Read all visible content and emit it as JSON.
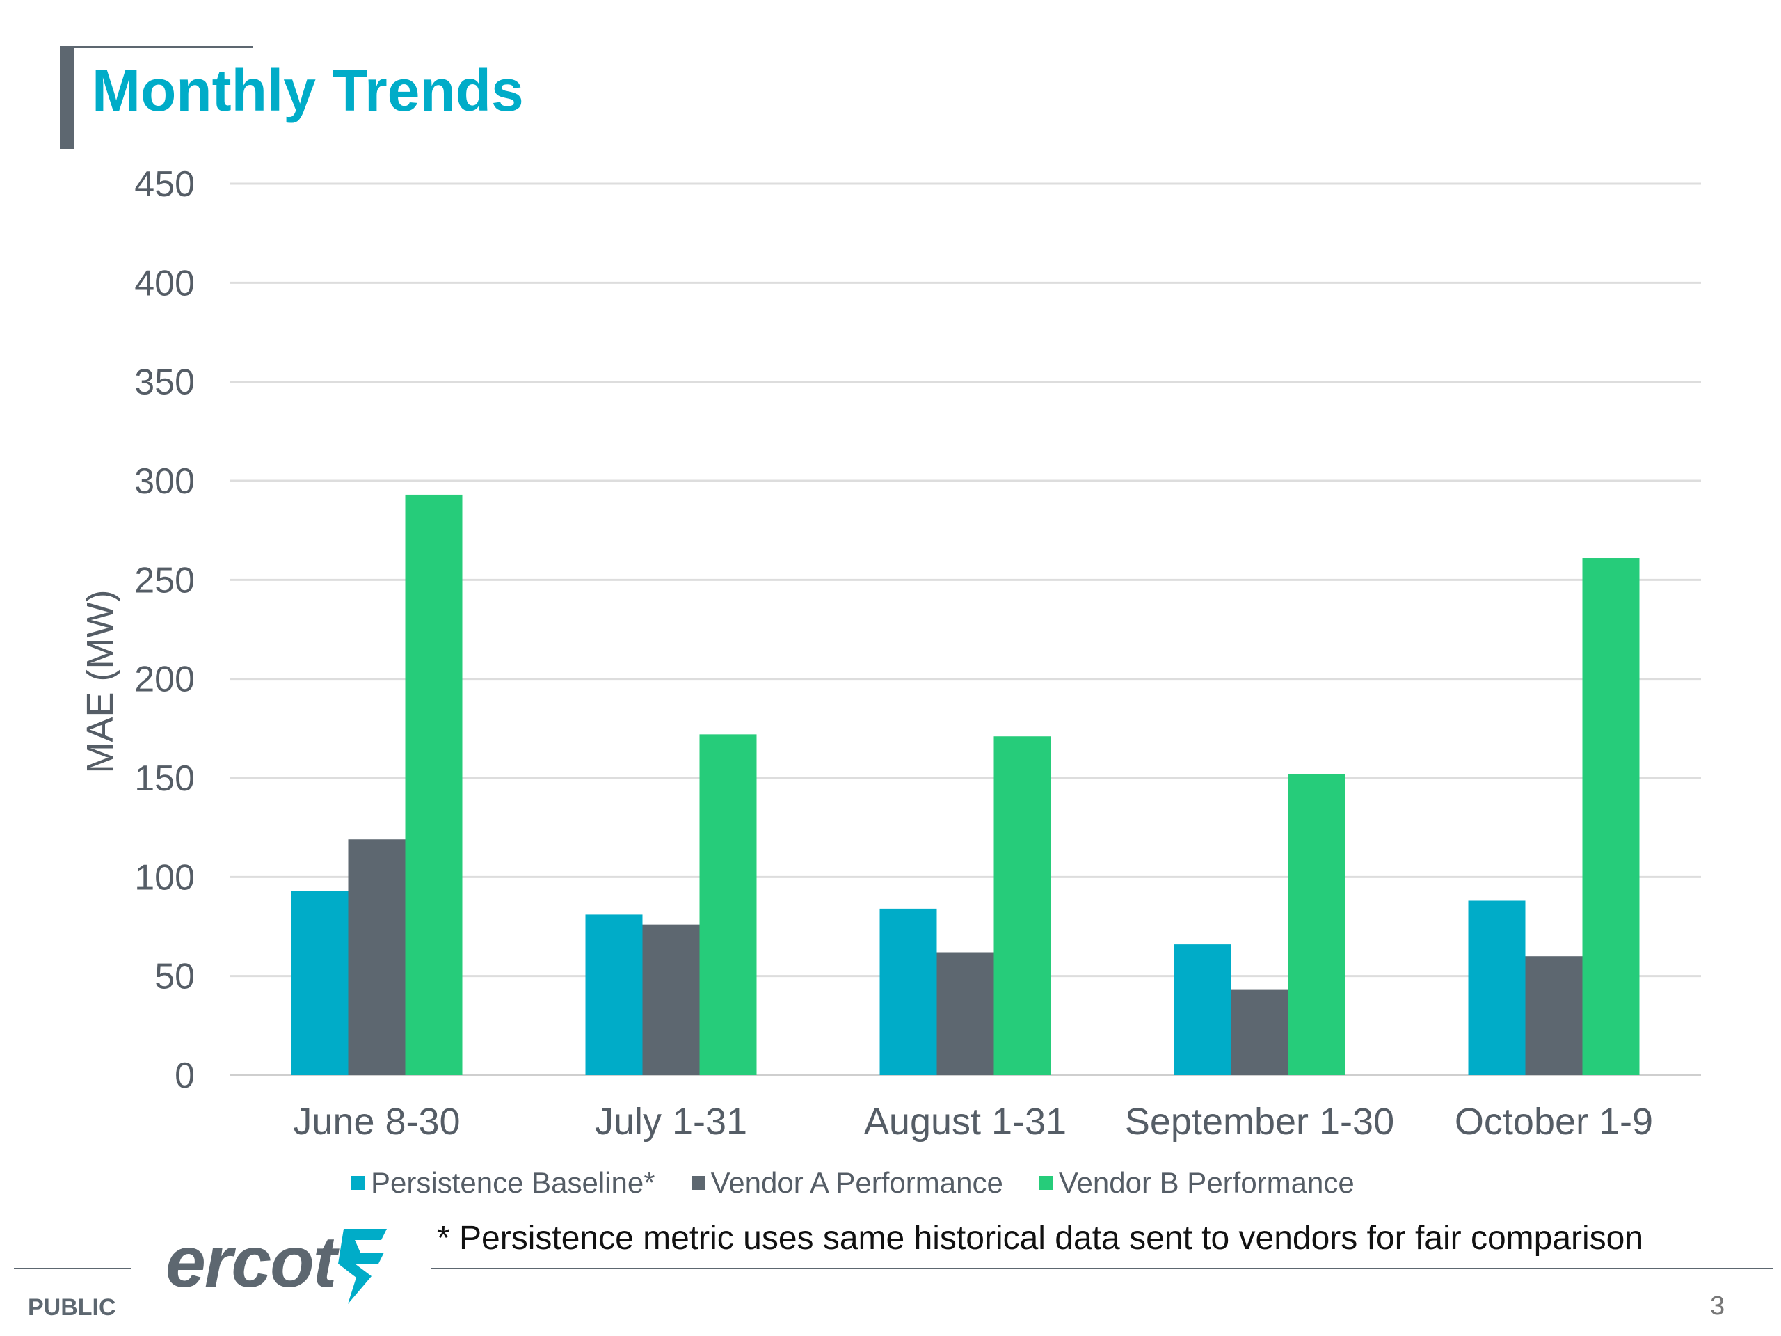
{
  "slide": {
    "title": "Monthly Trends",
    "footnote": "* Persistence metric uses same historical data sent to vendors for fair comparison",
    "logo_text": "ercot",
    "classification": "PUBLIC",
    "page_number": "3"
  },
  "colors": {
    "accent": "#00acc8",
    "persistence": "#00acc8",
    "vendor_a": "#5d6770",
    "vendor_b": "#26cc7a"
  },
  "chart_data": {
    "type": "bar",
    "title": "",
    "xlabel": "",
    "ylabel": "MAE (MW)",
    "ylim": [
      0,
      450
    ],
    "yticks": [
      0,
      50,
      100,
      150,
      200,
      250,
      300,
      350,
      400,
      450
    ],
    "grid": true,
    "legend_position": "bottom",
    "categories": [
      "June 8-30",
      "July 1-31",
      "August 1-31",
      "September 1-30",
      "October 1-9"
    ],
    "series": [
      {
        "name": "Persistence Baseline*",
        "color": "#00acc8",
        "values": [
          93,
          81,
          84,
          66,
          88
        ]
      },
      {
        "name": "Vendor A Performance",
        "color": "#5d6770",
        "values": [
          119,
          76,
          62,
          43,
          60
        ]
      },
      {
        "name": "Vendor B Performance",
        "color": "#26cc7a",
        "values": [
          293,
          172,
          171,
          152,
          261
        ]
      }
    ]
  }
}
